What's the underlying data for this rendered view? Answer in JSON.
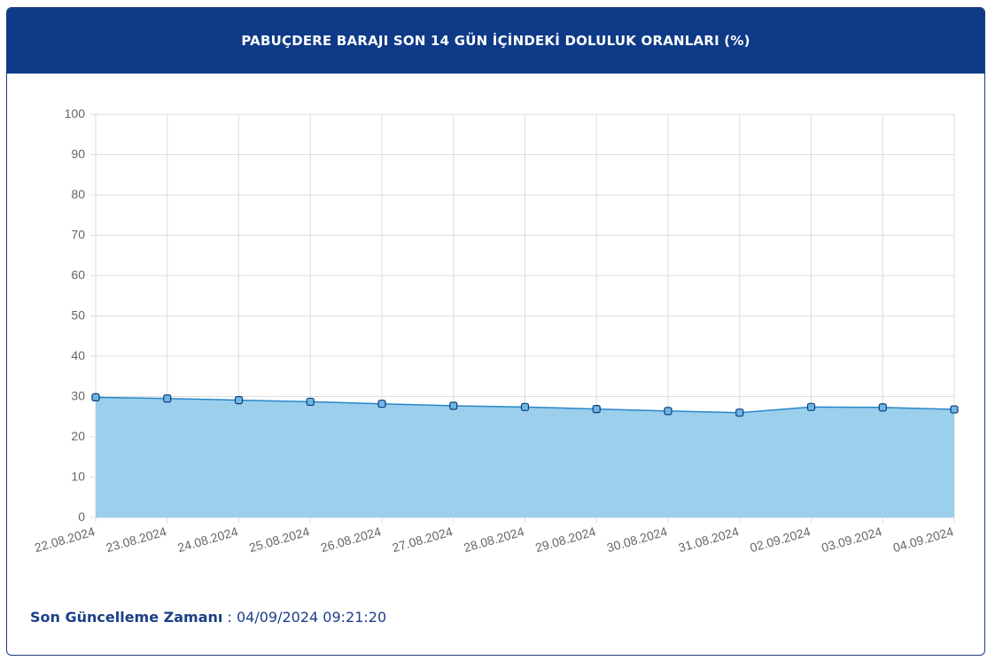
{
  "header": {
    "title": "PABUÇDERE BARAJI SON 14 GÜN İÇİNDEKİ DOLULUK ORANLARI (%)"
  },
  "footer": {
    "label": "Son Güncelleme Zamanı",
    "separator": " : ",
    "value": "04/09/2024 09:21:20"
  },
  "colors": {
    "header_bg": "#0e3a87",
    "line": "#2a86c9",
    "area": "#9bcfec",
    "point_fill": "#6fb6e4",
    "point_stroke": "#0d3c7a"
  },
  "chart_data": {
    "type": "area",
    "title": "PABUÇDERE BARAJI SON 14 GÜN İÇİNDEKİ DOLULUK ORANLARI (%)",
    "xlabel": "",
    "ylabel": "",
    "ylim": [
      0,
      100
    ],
    "yticks": [
      0,
      10,
      20,
      30,
      40,
      50,
      60,
      70,
      80,
      90,
      100
    ],
    "grid": true,
    "legend": "none",
    "categories": [
      "22.08.2024",
      "23.08.2024",
      "24.08.2024",
      "25.08.2024",
      "26.08.2024",
      "27.08.2024",
      "28.08.2024",
      "29.08.2024",
      "30.08.2024",
      "31.08.2024",
      "02.09.2024",
      "03.09.2024",
      "04.09.2024"
    ],
    "series": [
      {
        "values": [
          29.8,
          29.5,
          29.1,
          28.7,
          28.2,
          27.7,
          27.4,
          26.9,
          26.4,
          26.0,
          27.4,
          27.3,
          26.8
        ]
      }
    ]
  }
}
